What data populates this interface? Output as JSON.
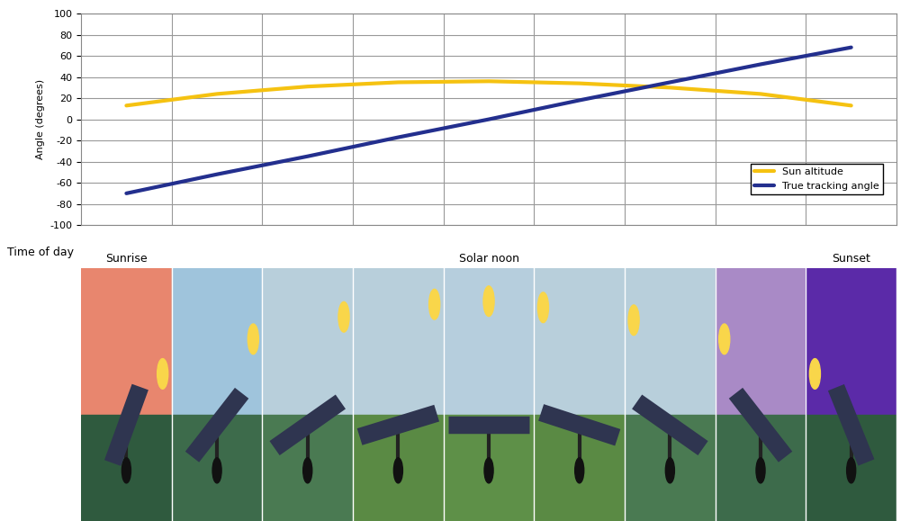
{
  "chart_data": {
    "type": "line",
    "categories": [
      "Sunrise",
      null,
      null,
      null,
      "Solar noon",
      null,
      null,
      null,
      "Sunset"
    ],
    "xlabel": "Time of day",
    "ylabel": "Angle (degrees)",
    "ylim": [
      -100,
      100
    ],
    "yticks": [
      -100,
      -80,
      -60,
      -40,
      -20,
      0,
      20,
      40,
      60,
      80,
      100
    ],
    "grid": true,
    "legend": "lower right",
    "series": [
      {
        "name": "Sun altitude",
        "color": "#f5c211",
        "values": [
          13,
          24,
          31,
          35,
          36,
          34,
          30,
          24,
          13
        ]
      },
      {
        "name": "True tracking angle",
        "color": "#232f8e",
        "values": [
          -70,
          -52,
          -35,
          -17,
          0,
          18,
          35,
          52,
          68
        ]
      }
    ]
  }
}
